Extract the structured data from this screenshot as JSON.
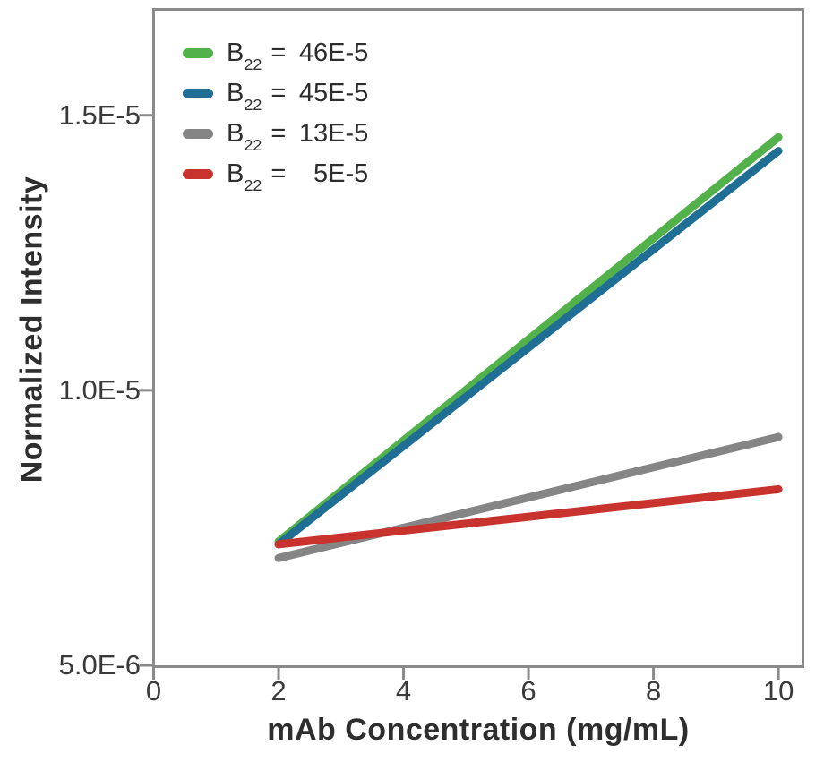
{
  "colors": {
    "green": "#53b14c",
    "blue": "#1f6e93",
    "gray": "#858585",
    "red": "#c8342d",
    "axis": "#8a8a8a",
    "tick_text": "#3a3a3a",
    "title_text": "#2e2e2e"
  },
  "legend": {
    "items": [
      {
        "prefix": "B",
        "subscript": "22",
        "equals": "=",
        "value": "46E-5",
        "color": "green"
      },
      {
        "prefix": "B",
        "subscript": "22",
        "equals": "=",
        "value": "45E-5",
        "color": "blue"
      },
      {
        "prefix": "B",
        "subscript": "22",
        "equals": "=",
        "value": "13E-5",
        "color": "gray"
      },
      {
        "prefix": "B",
        "subscript": "22",
        "equals": "=",
        "value": "5E-5",
        "color": "red"
      }
    ]
  },
  "chart_data": {
    "type": "line",
    "title": "",
    "xlabel": "mAb Concentration (mg/mL)",
    "ylabel": "Normalized Intensity",
    "xlim": [
      0,
      10.4
    ],
    "ylim": [
      5e-06,
      1.69e-05
    ],
    "grid": false,
    "legend_position": "top-left-inside",
    "x_ticks": [
      {
        "value": 0,
        "label": "0"
      },
      {
        "value": 2,
        "label": "2"
      },
      {
        "value": 4,
        "label": "4"
      },
      {
        "value": 6,
        "label": "6"
      },
      {
        "value": 8,
        "label": "8"
      },
      {
        "value": 10,
        "label": "10"
      }
    ],
    "y_ticks": [
      {
        "value": 5e-06,
        "label": "5.0E-6"
      },
      {
        "value": 1e-05,
        "label": "1.0E-5"
      },
      {
        "value": 1.5e-05,
        "label": "1.5E-5"
      }
    ],
    "series": [
      {
        "name": "B22 = 46E-5",
        "color": "green",
        "x": [
          2,
          10
        ],
        "y": [
          7.25e-06,
          1.46e-05
        ]
      },
      {
        "name": "B22 = 45E-5",
        "color": "blue",
        "x": [
          2,
          10
        ],
        "y": [
          7.2e-06,
          1.435e-05
        ]
      },
      {
        "name": "B22 = 13E-5",
        "color": "gray",
        "x": [
          2,
          10
        ],
        "y": [
          6.95e-06,
          9.15e-06
        ]
      },
      {
        "name": "B22 = 5E-5",
        "color": "red",
        "x": [
          2,
          10
        ],
        "y": [
          7.2e-06,
          8.2e-06
        ]
      }
    ]
  }
}
